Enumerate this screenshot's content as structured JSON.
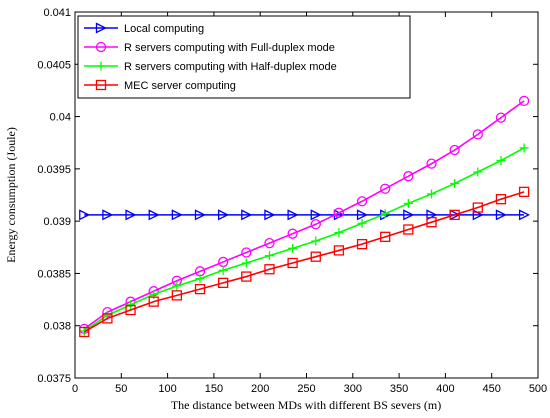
{
  "chart_data": {
    "type": "line",
    "xlabel": "The distance between MDs with different BS severs (m)",
    "ylabel": "Energy consumption (Joule)",
    "xlim": [
      0,
      500
    ],
    "ylim": [
      0.0375,
      0.041
    ],
    "xticks": [
      0,
      50,
      100,
      150,
      200,
      250,
      300,
      350,
      400,
      450,
      500
    ],
    "yticks": [
      0.0375,
      0.038,
      0.0385,
      0.039,
      0.0395,
      0.04,
      0.0405,
      0.041
    ],
    "xtick_labels": [
      "0",
      "50",
      "100",
      "150",
      "200",
      "250",
      "300",
      "350",
      "400",
      "450",
      "500"
    ],
    "ytick_labels": [
      "0.0375",
      "0.038",
      "0.0385",
      "0.039",
      "0.0395",
      "0.04",
      "0.0405",
      "0.041"
    ],
    "grid": false,
    "legend_position": "top-left",
    "x": [
      10,
      35,
      60,
      85,
      110,
      135,
      160,
      185,
      210,
      235,
      260,
      285,
      310,
      335,
      360,
      385,
      410,
      435,
      460,
      485
    ],
    "series": [
      {
        "name": "Local computing",
        "color": "#0000ff",
        "marker": "triangle-right",
        "values": [
          0.03906,
          0.03906,
          0.03906,
          0.03906,
          0.03906,
          0.03906,
          0.03906,
          0.03906,
          0.03906,
          0.03906,
          0.03906,
          0.03906,
          0.03906,
          0.03906,
          0.03906,
          0.03906,
          0.03906,
          0.03906,
          0.03906,
          0.03906
        ]
      },
      {
        "name": "R servers computing with Full-duplex mode",
        "color": "#ff00ff",
        "marker": "circle",
        "values": [
          0.03797,
          0.03813,
          0.03823,
          0.03833,
          0.03843,
          0.03852,
          0.03861,
          0.0387,
          0.03879,
          0.03888,
          0.03897,
          0.03908,
          0.03919,
          0.03931,
          0.03943,
          0.03955,
          0.03968,
          0.03983,
          0.03999,
          0.04015
        ]
      },
      {
        "name": "R servers computing with Half-duplex mode",
        "color": "#00ff00",
        "marker": "plus",
        "values": [
          0.03795,
          0.0381,
          0.0382,
          0.0383,
          0.03838,
          0.03845,
          0.03853,
          0.0386,
          0.03867,
          0.03874,
          0.03881,
          0.03889,
          0.03898,
          0.03907,
          0.03917,
          0.03926,
          0.03936,
          0.03947,
          0.03958,
          0.0397
        ]
      },
      {
        "name": "MEC server computing",
        "color": "#ff0000",
        "marker": "square",
        "values": [
          0.03794,
          0.03807,
          0.03815,
          0.03823,
          0.03829,
          0.03835,
          0.03841,
          0.03847,
          0.03854,
          0.0386,
          0.03866,
          0.03872,
          0.03878,
          0.03885,
          0.03892,
          0.03899,
          0.03906,
          0.03913,
          0.03921,
          0.03928
        ]
      }
    ]
  }
}
